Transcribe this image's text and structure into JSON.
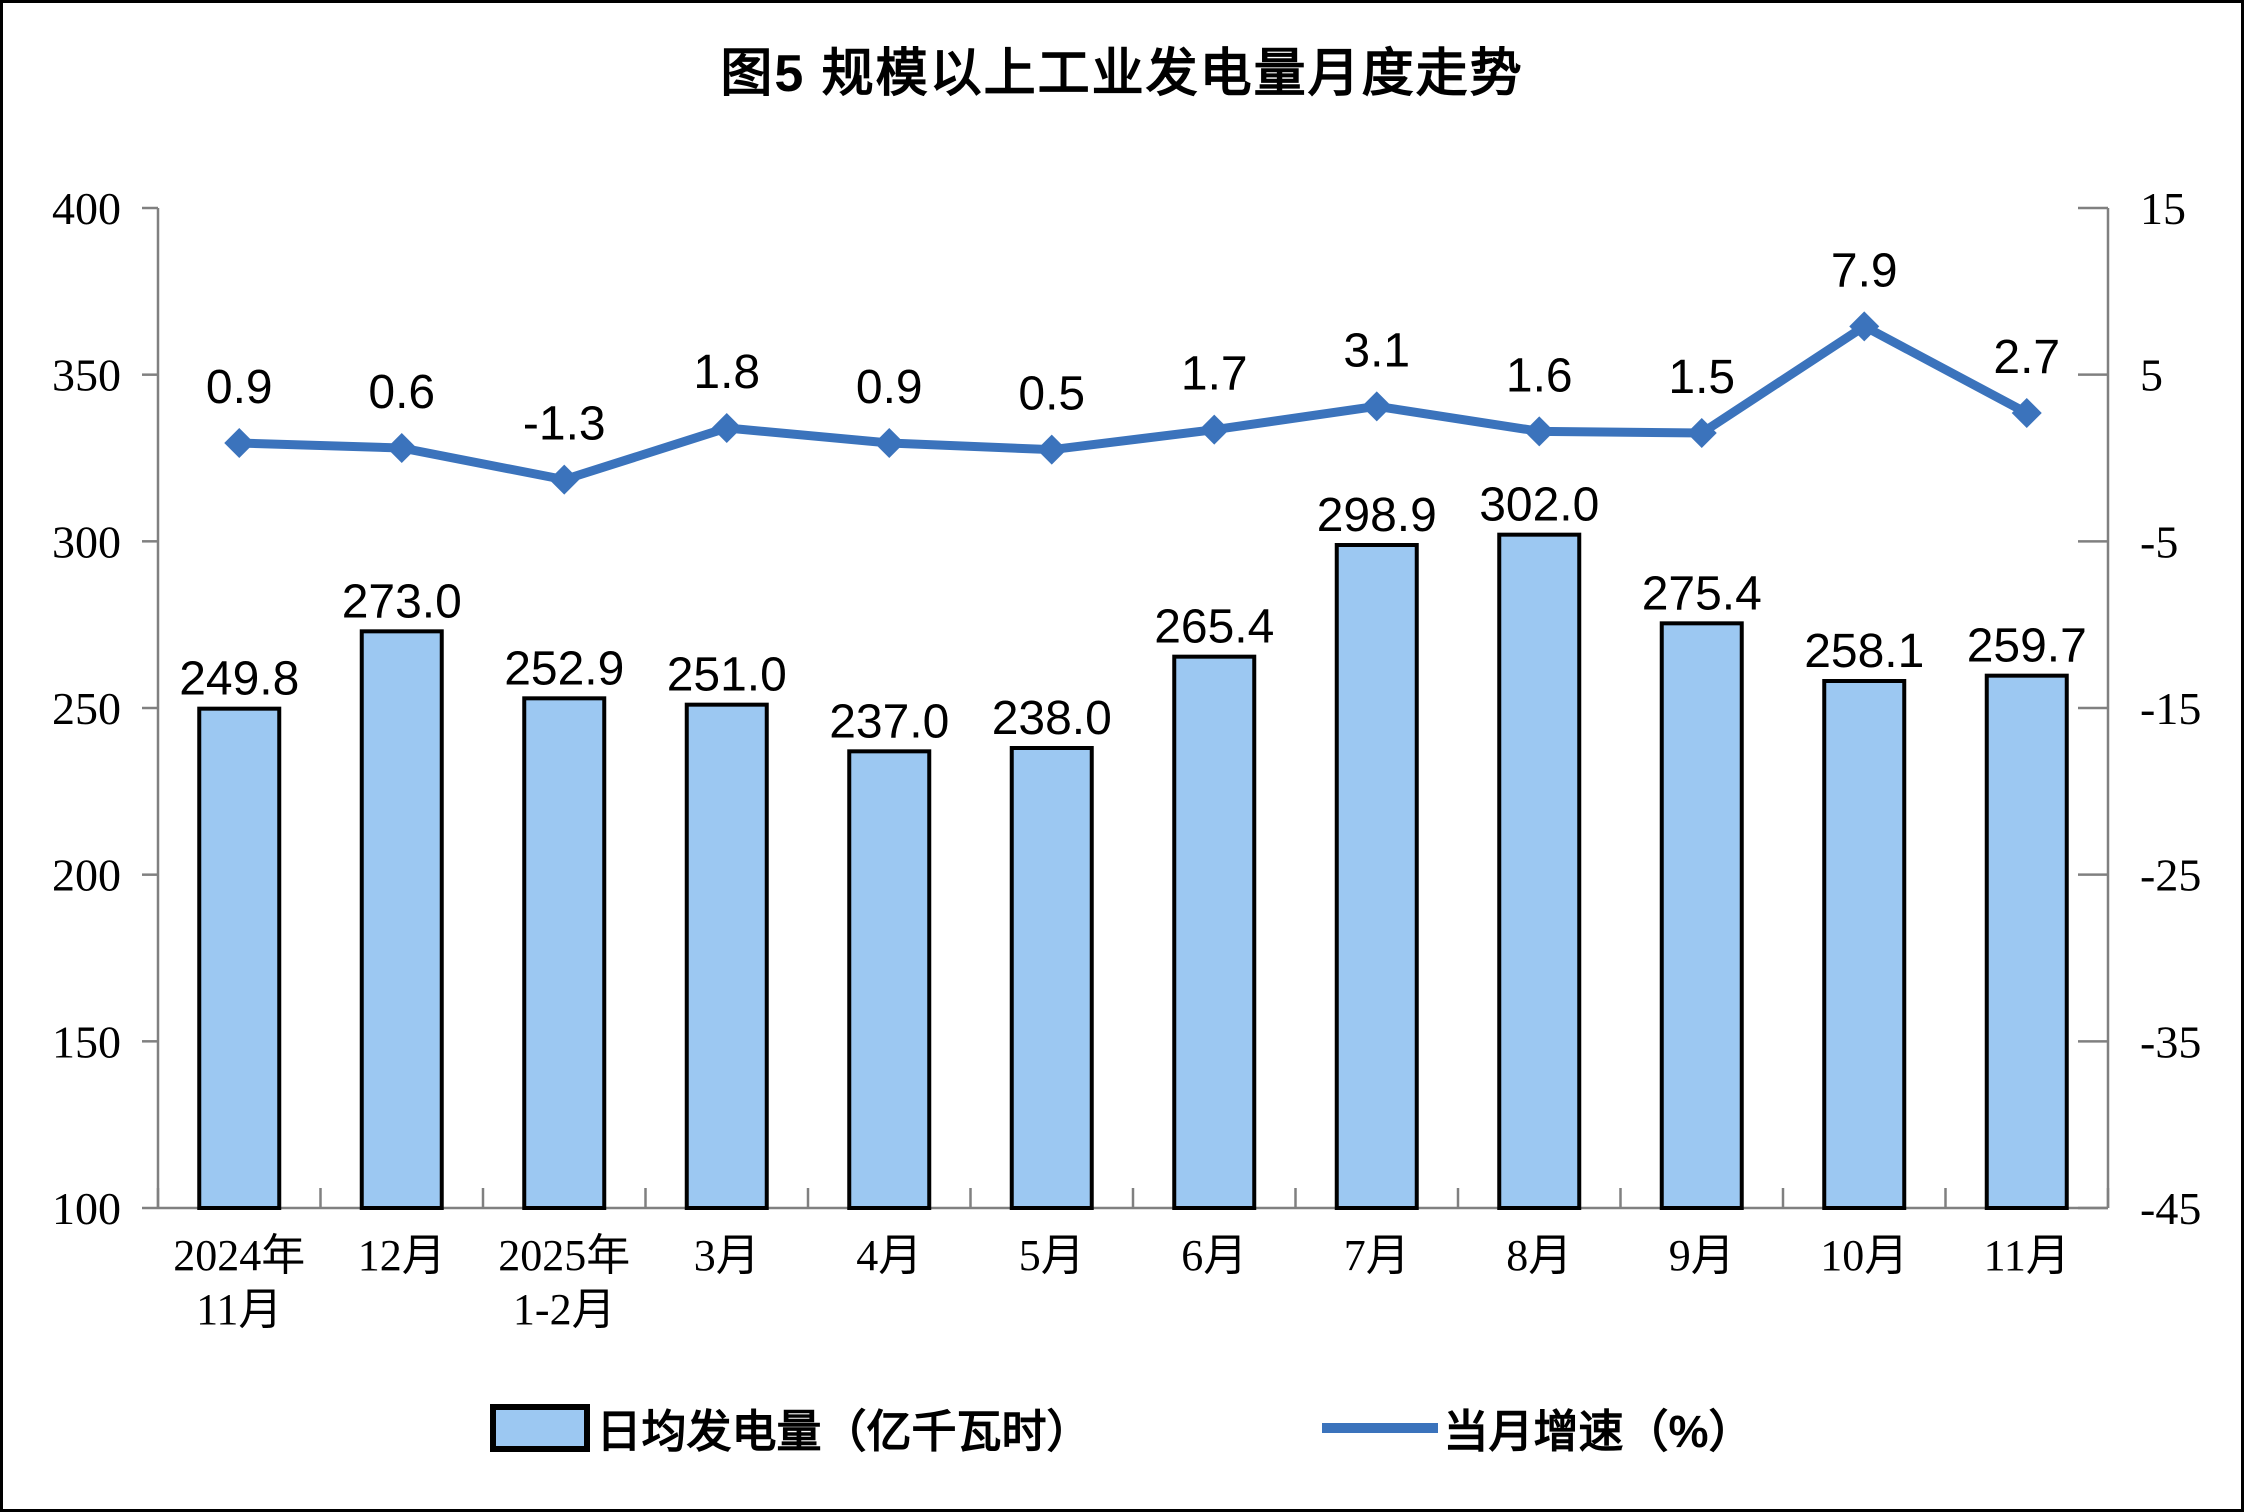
{
  "chart_data": {
    "type": "bar+line",
    "title": "图5 规模以上工业发电量月度走势",
    "categories": [
      [
        "2024年",
        "11月"
      ],
      [
        "12月"
      ],
      [
        "2025年",
        "1-2月"
      ],
      [
        "3月"
      ],
      [
        "4月"
      ],
      [
        "5月"
      ],
      [
        "6月"
      ],
      [
        "7月"
      ],
      [
        "8月"
      ],
      [
        "9月"
      ],
      [
        "10月"
      ],
      [
        "11月"
      ]
    ],
    "bar_series": {
      "name": "日均发电量（亿千瓦时）",
      "axis": "left",
      "values": [
        249.8,
        273.0,
        252.9,
        251.0,
        237.0,
        238.0,
        265.4,
        298.9,
        302.0,
        275.4,
        258.1,
        259.7
      ],
      "labels": [
        "249.8",
        "273.0",
        "252.9",
        "251.0",
        "237.0",
        "238.0",
        "265.4",
        "298.9",
        "302.0",
        "275.4",
        "258.1",
        "259.7"
      ],
      "fill": "#9CC8F2",
      "stroke": "#000000"
    },
    "line_series": {
      "name": "当月增速（%）",
      "axis": "right",
      "marker": "diamond",
      "values": [
        0.9,
        0.6,
        -1.3,
        1.8,
        0.9,
        0.5,
        1.7,
        3.1,
        1.6,
        1.5,
        7.9,
        2.7
      ],
      "labels": [
        "0.9",
        "0.6",
        "-1.3",
        "1.8",
        "0.9",
        "0.5",
        "1.7",
        "3.1",
        "1.6",
        "1.5",
        "7.9",
        "2.7"
      ],
      "color": "#3B73BC"
    },
    "left_axis": {
      "min": 100,
      "max": 400,
      "step": 50,
      "ticks": [
        "400",
        "350",
        "300",
        "250",
        "200",
        "150",
        "100"
      ]
    },
    "right_axis": {
      "min": -45,
      "max": 15,
      "step": 10,
      "ticks": [
        "15",
        "5",
        "-5",
        "-15",
        "-25",
        "-35",
        "-45"
      ]
    },
    "legend": [
      {
        "label": "日均发电量（亿千瓦时）",
        "type": "bar"
      },
      {
        "label": "当月增速（%）",
        "type": "line"
      }
    ],
    "grid": "off",
    "axis_color": "#808080"
  }
}
